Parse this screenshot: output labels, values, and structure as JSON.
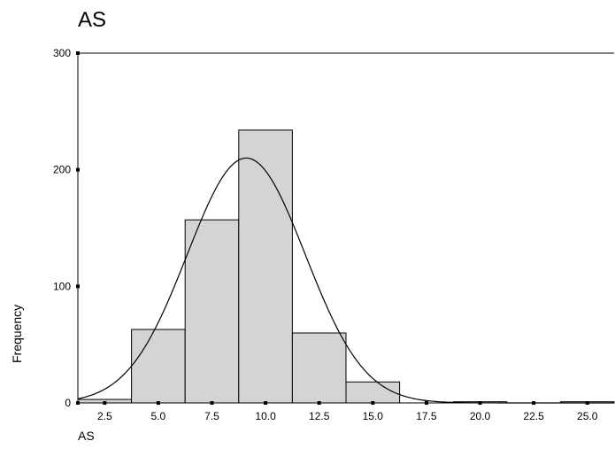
{
  "chart_data": {
    "type": "bar",
    "title": "AS",
    "xlabel": "AS",
    "ylabel": "Frequency",
    "xlim": [
      1.25,
      26.25
    ],
    "ylim": [
      0,
      300
    ],
    "x_ticks": [
      "2.5",
      "5.0",
      "7.5",
      "10.0",
      "12.5",
      "15.0",
      "17.5",
      "20.0",
      "22.5",
      "25.0"
    ],
    "y_ticks": [
      "0",
      "100",
      "200",
      "300"
    ],
    "bins": [
      {
        "start": 1.25,
        "end": 3.75,
        "value": 3
      },
      {
        "start": 3.75,
        "end": 6.25,
        "value": 63
      },
      {
        "start": 6.25,
        "end": 8.75,
        "value": 157
      },
      {
        "start": 8.75,
        "end": 11.25,
        "value": 234
      },
      {
        "start": 11.25,
        "end": 13.75,
        "value": 60
      },
      {
        "start": 13.75,
        "end": 16.25,
        "value": 18
      },
      {
        "start": 16.25,
        "end": 18.75,
        "value": 0
      },
      {
        "start": 18.75,
        "end": 21.25,
        "value": 1
      },
      {
        "start": 21.25,
        "end": 23.75,
        "value": 0
      },
      {
        "start": 23.75,
        "end": 26.25,
        "value": 1
      }
    ],
    "normal_curve": {
      "mean": 9.1,
      "sd": 2.75,
      "peak": 210
    },
    "grid": false,
    "colors": {
      "bar_fill": "#d4d4d4",
      "bar_stroke": "#000000",
      "curve": "#000000"
    }
  }
}
